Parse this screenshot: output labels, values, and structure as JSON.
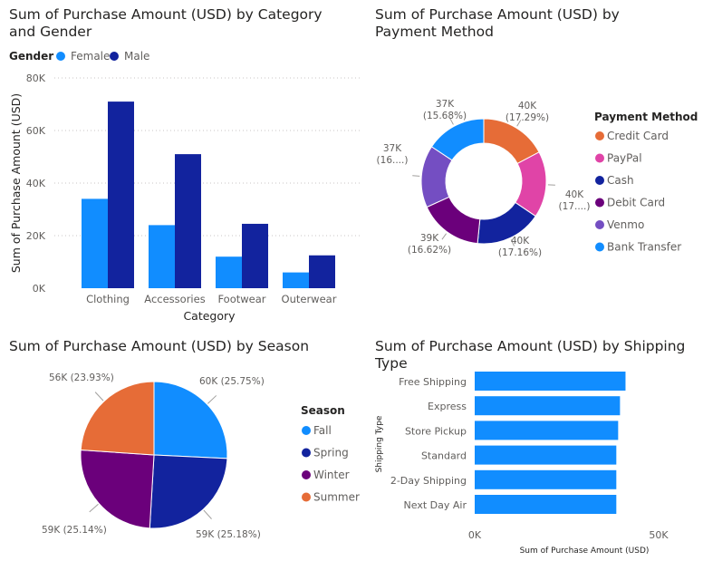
{
  "colors": {
    "female": "#118DFF",
    "male": "#12239E",
    "credit_card": "#E66C37",
    "paypal": "#E044A7",
    "cash": "#12239E",
    "debit_card": "#6B007B",
    "venmo": "#744EC2",
    "bank_transfer": "#118DFF",
    "fall": "#118DFF",
    "spring": "#12239E",
    "winter": "#6B007B",
    "summer": "#E66C37",
    "shipping": "#118DFF"
  },
  "chart_data": [
    {
      "type": "bar",
      "title": "Sum of Purchase Amount (USD) by Category and Gender",
      "legend_title": "Gender",
      "xlabel": "Category",
      "ylabel": "Sum of Purchase Amount (USD)",
      "categories": [
        "Clothing",
        "Accessories",
        "Footwear",
        "Outerwear"
      ],
      "series": [
        {
          "name": "Female",
          "values": [
            34000,
            24000,
            12000,
            6000
          ]
        },
        {
          "name": "Male",
          "values": [
            71000,
            51000,
            24500,
            12500
          ]
        }
      ],
      "ylim": [
        0,
        80000
      ],
      "yticks": [
        "0K",
        "20K",
        "40K",
        "60K",
        "80K"
      ],
      "legend_position": "top-left",
      "grid": true
    },
    {
      "type": "pie",
      "title": "Sum of Purchase Amount (USD) by Payment Method",
      "legend_title": "Payment Method",
      "donut": true,
      "labels": [
        "Credit Card",
        "PayPal",
        "Cash",
        "Debit Card",
        "Venmo",
        "Bank Transfer"
      ],
      "values": [
        17.29,
        17.15,
        17.16,
        16.62,
        16.1,
        15.68
      ],
      "data_labels": [
        [
          "40K",
          "(17.29%)"
        ],
        [
          "40K",
          "(17....)"
        ],
        [
          "40K",
          "(17.16%)"
        ],
        [
          "39K",
          "(16.62%)"
        ],
        [
          "37K",
          "(16....)"
        ],
        [
          "37K",
          "(15.68%)"
        ]
      ],
      "legend_position": "right"
    },
    {
      "type": "pie",
      "title": "Sum of Purchase Amount (USD) by Season",
      "legend_title": "Season",
      "labels": [
        "Fall",
        "Spring",
        "Winter",
        "Summer"
      ],
      "values": [
        25.75,
        25.18,
        25.14,
        23.93
      ],
      "data_labels": [
        "60K (25.75%)",
        "59K (25.18%)",
        "59K (25.14%)",
        "56K (23.93%)"
      ],
      "legend_position": "right"
    },
    {
      "type": "bar",
      "orientation": "horizontal",
      "title": "Sum of Purchase Amount (USD) by Shipping Type",
      "xlabel": "Sum of Purchase Amount (USD)",
      "ylabel": "Shipping Type",
      "categories": [
        "Free Shipping",
        "Express",
        "Store Pickup",
        "Standard",
        "2-Day Shipping",
        "Next Day Air"
      ],
      "values": [
        41000,
        39500,
        39000,
        38500,
        38500,
        38500
      ],
      "xlim": [
        0,
        50000
      ],
      "xticks": [
        "0K",
        "50K"
      ]
    }
  ]
}
